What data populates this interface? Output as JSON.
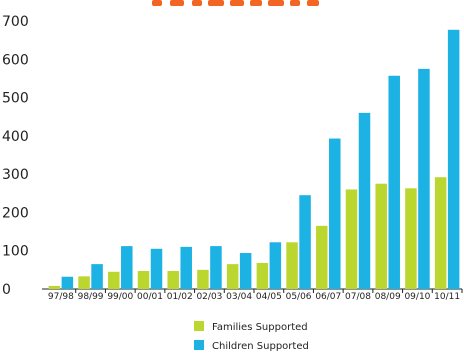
{
  "chart_data": {
    "type": "bar",
    "categories": [
      "97/98",
      "98/99",
      "99/00",
      "00/01",
      "01/02",
      "02/03",
      "03/04",
      "04/05",
      "05/06",
      "06/07",
      "07/08",
      "08/09",
      "09/10",
      "10/11"
    ],
    "series": [
      {
        "name": "Families Supported",
        "color": "#bcd630",
        "values": [
          8,
          33,
          45,
          47,
          47,
          50,
          65,
          68,
          122,
          165,
          260,
          275,
          263,
          292
        ]
      },
      {
        "name": "Children Supported",
        "color": "#1cb2e3",
        "values": [
          32,
          65,
          112,
          105,
          110,
          112,
          94,
          122,
          245,
          393,
          460,
          557,
          575,
          677
        ]
      }
    ],
    "title": "",
    "title_color": "#f26522",
    "xlabel": "",
    "ylabel": "",
    "ylim": [
      0,
      700
    ],
    "yticks": [
      0,
      100,
      200,
      300,
      400,
      500,
      600,
      700
    ],
    "grid": false,
    "legend_position": "bottom-center"
  }
}
